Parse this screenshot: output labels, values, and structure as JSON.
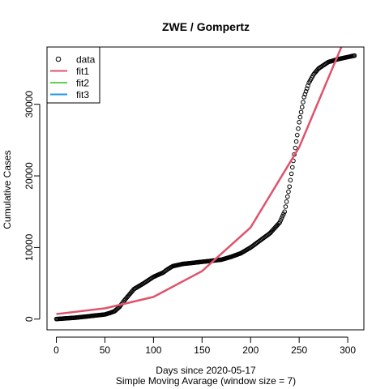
{
  "chart_data": {
    "type": "scatter",
    "title": "ZWE / Gompertz",
    "xlabel": "Days since 2020-05-17",
    "subtitle": "Simple Moving Avarage (window size = 7)",
    "ylabel": "Cumulative Cases",
    "xlim": [
      -9.6,
      316.6
    ],
    "ylim": [
      -1500,
      38000
    ],
    "x_ticks": [
      0,
      50,
      100,
      150,
      200,
      250,
      300
    ],
    "y_ticks": [
      0,
      10000,
      20000,
      30000
    ],
    "legend_position": "top-left",
    "legend": [
      {
        "label": "data",
        "kind": "point",
        "color": "#000000"
      },
      {
        "label": "fit1",
        "kind": "line",
        "color": "#DF536B"
      },
      {
        "label": "fit2",
        "kind": "line",
        "color": "#61D04F"
      },
      {
        "label": "fit3",
        "kind": "line",
        "color": "#2297E6"
      }
    ],
    "series": [
      {
        "name": "data",
        "kind": "points",
        "color": "#000000",
        "points": [
          [
            0,
            10
          ],
          [
            20,
            200
          ],
          [
            40,
            500
          ],
          [
            50,
            650
          ],
          [
            55,
            850
          ],
          [
            60,
            1100
          ],
          [
            65,
            1700
          ],
          [
            70,
            2600
          ],
          [
            75,
            3400
          ],
          [
            80,
            4200
          ],
          [
            90,
            5000
          ],
          [
            100,
            5900
          ],
          [
            110,
            6500
          ],
          [
            115,
            7000
          ],
          [
            120,
            7400
          ],
          [
            130,
            7700
          ],
          [
            140,
            7850
          ],
          [
            150,
            8000
          ],
          [
            160,
            8150
          ],
          [
            170,
            8300
          ],
          [
            180,
            8700
          ],
          [
            190,
            9200
          ],
          [
            200,
            10000
          ],
          [
            210,
            11000
          ],
          [
            220,
            12000
          ],
          [
            230,
            13500
          ],
          [
            235,
            15000
          ],
          [
            240,
            18500
          ],
          [
            245,
            23000
          ],
          [
            250,
            27500
          ],
          [
            255,
            31000
          ],
          [
            260,
            33000
          ],
          [
            265,
            34200
          ],
          [
            270,
            35000
          ],
          [
            280,
            35900
          ],
          [
            290,
            36300
          ],
          [
            300,
            36600
          ],
          [
            307,
            36800
          ]
        ]
      },
      {
        "name": "fit1",
        "kind": "line",
        "color": "#DF536B",
        "points": [
          [
            0,
            700
          ],
          [
            50,
            1500
          ],
          [
            100,
            3100
          ],
          [
            150,
            6700
          ],
          [
            200,
            12800
          ],
          [
            250,
            24000
          ],
          [
            295,
            38500
          ]
        ]
      }
    ]
  }
}
